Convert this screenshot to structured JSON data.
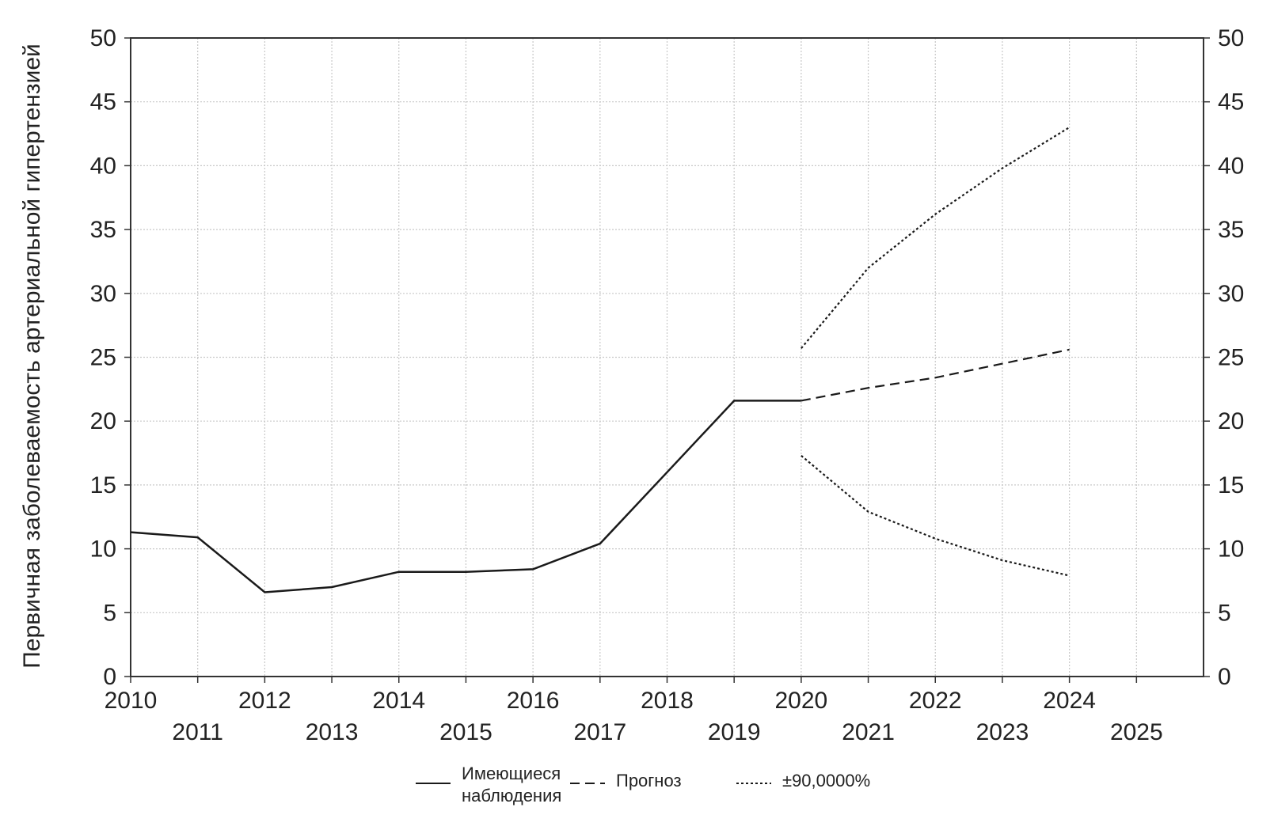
{
  "chart_data": {
    "type": "line",
    "title": "",
    "ylabel": "Первичная заболеваемость артериальной гипертензией",
    "xlabel": "",
    "ylim": [
      0,
      50
    ],
    "xlim": [
      2010,
      2026
    ],
    "yticks": [
      0,
      5,
      10,
      15,
      20,
      25,
      30,
      35,
      40,
      45,
      50
    ],
    "xticks": [
      "2010",
      "2011",
      "2012",
      "2013",
      "2014",
      "2015",
      "2016",
      "2017",
      "2018",
      "2019",
      "2020",
      "2021",
      "2022",
      "2023",
      "2024",
      "2025"
    ],
    "grid": true,
    "legend_position": "bottom",
    "series": [
      {
        "name": "Имеющиеся наблюдения",
        "style": "solid",
        "x": [
          2010,
          2011,
          2012,
          2013,
          2014,
          2015,
          2016,
          2017,
          2018,
          2019,
          2020
        ],
        "y": [
          11.3,
          10.9,
          6.6,
          7.0,
          8.2,
          8.2,
          8.4,
          10.4,
          16.0,
          21.6,
          21.6
        ]
      },
      {
        "name": "Прогноз",
        "style": "dashed",
        "x": [
          2020,
          2021,
          2022,
          2023,
          2024
        ],
        "y": [
          21.6,
          22.6,
          23.4,
          24.5,
          25.6
        ]
      },
      {
        "name": "±90,0000%",
        "style": "dotted",
        "x": [
          2020,
          2021,
          2022,
          2023,
          2024
        ],
        "y": [
          25.7,
          32.0,
          36.2,
          39.8,
          43.0
        ]
      },
      {
        "name": "",
        "style": "dotted",
        "x": [
          2020,
          2021,
          2022,
          2023,
          2024
        ],
        "y": [
          17.3,
          12.9,
          10.8,
          9.1,
          7.9
        ]
      }
    ]
  },
  "legend": [
    {
      "label_lines": [
        "Имеющиеся",
        "наблюдения"
      ],
      "style": "solid"
    },
    {
      "label_lines": [
        "Прогноз"
      ],
      "style": "dashed"
    },
    {
      "label_lines": [
        "±90,0000%"
      ],
      "style": "dotted"
    }
  ]
}
